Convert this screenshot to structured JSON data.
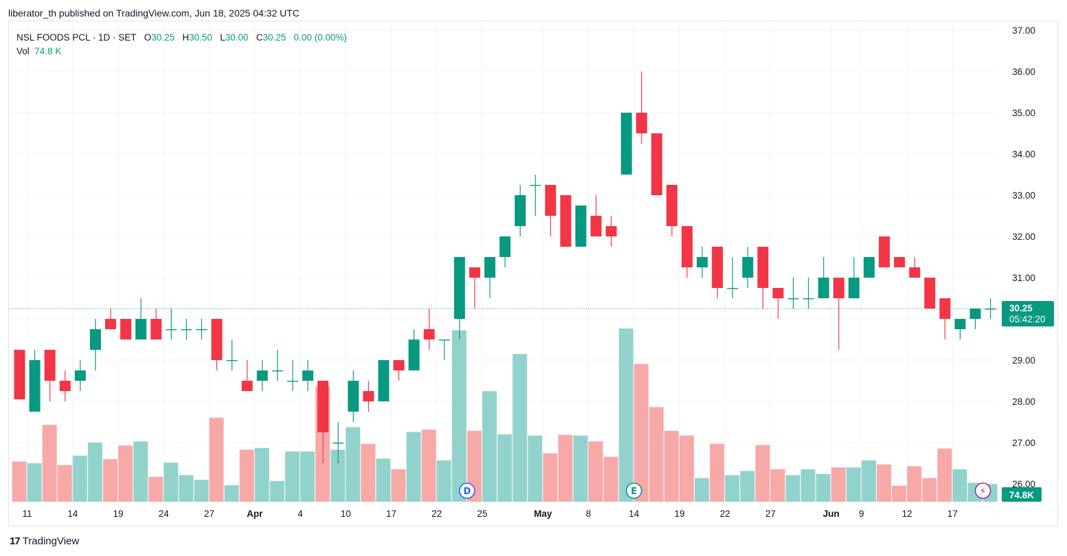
{
  "header": {
    "publisher": "liberator_th published on TradingView.com, Jun 18, 2025 04:32 UTC"
  },
  "legend": {
    "symbol": "NSL FOODS PCL · 1D · SET",
    "o_label": "O",
    "o": "30.25",
    "h_label": "H",
    "h": "30.50",
    "l_label": "L",
    "l": "30.00",
    "c_label": "C",
    "c": "30.25",
    "change": "0.00 (0.00%)",
    "vol_label": "Vol",
    "vol": "74.8 K"
  },
  "footer": {
    "brand": "TradingView",
    "logo": "17"
  },
  "colors": {
    "up": "#089981",
    "down": "#f23645",
    "vol_up": "#92d2cc",
    "vol_down": "#f7a9a7",
    "grid": "#f0f3fa",
    "text": "#131722"
  },
  "chart_data": {
    "type": "candlestick",
    "y_axis": {
      "ticks": [
        "26.00",
        "27.00",
        "28.00",
        "29.00",
        "30.00",
        "31.00",
        "32.00",
        "33.00",
        "34.00",
        "35.00",
        "36.00",
        "37.00"
      ],
      "range": [
        25.55,
        37.15
      ]
    },
    "x_axis": {
      "ticks": [
        "11",
        "14",
        "19",
        "24",
        "27",
        "Apr",
        "4",
        "10",
        "17",
        "22",
        "25",
        "May",
        "8",
        "14",
        "19",
        "22",
        "27",
        "Jun",
        "9",
        "12",
        "17"
      ]
    },
    "last_price_label": "30.25",
    "countdown_label": "05:42:20",
    "volume_label": "74.8K",
    "markers": [
      {
        "text": "D"
      },
      {
        "text": "E"
      },
      {
        "text": "⚡"
      }
    ],
    "candles": [
      {
        "o": 29.25,
        "h": 29.25,
        "l": 28.05,
        "c": 28.05,
        "v": 0.68
      },
      {
        "o": 27.75,
        "h": 29.25,
        "l": 27.75,
        "c": 29.0,
        "v": 0.65
      },
      {
        "o": 29.25,
        "h": 29.25,
        "l": 28.0,
        "c": 28.5,
        "v": 1.3
      },
      {
        "o": 28.5,
        "h": 28.75,
        "l": 28.0,
        "c": 28.25,
        "v": 0.62
      },
      {
        "o": 28.5,
        "h": 29.0,
        "l": 28.25,
        "c": 28.75,
        "v": 0.78
      },
      {
        "o": 29.25,
        "h": 30.0,
        "l": 28.75,
        "c": 29.75,
        "v": 1.0
      },
      {
        "o": 30.0,
        "h": 30.25,
        "l": 29.75,
        "c": 29.75,
        "v": 0.72
      },
      {
        "o": 30.0,
        "h": 30.0,
        "l": 29.5,
        "c": 29.5,
        "v": 0.95
      },
      {
        "o": 29.5,
        "h": 30.5,
        "l": 29.5,
        "c": 30.0,
        "v": 1.02
      },
      {
        "o": 30.0,
        "h": 30.25,
        "l": 29.5,
        "c": 29.5,
        "v": 0.42
      },
      {
        "o": 29.75,
        "h": 30.25,
        "l": 29.5,
        "c": 29.75,
        "v": 0.66
      },
      {
        "o": 29.75,
        "h": 30.0,
        "l": 29.5,
        "c": 29.75,
        "v": 0.45
      },
      {
        "o": 29.75,
        "h": 30.0,
        "l": 29.5,
        "c": 29.75,
        "v": 0.37
      },
      {
        "o": 30.0,
        "h": 30.0,
        "l": 28.75,
        "c": 29.0,
        "v": 1.42
      },
      {
        "o": 29.0,
        "h": 29.5,
        "l": 28.75,
        "c": 29.0,
        "v": 0.28
      },
      {
        "o": 28.5,
        "h": 29.0,
        "l": 28.25,
        "c": 28.25,
        "v": 0.88
      },
      {
        "o": 28.5,
        "h": 29.0,
        "l": 28.25,
        "c": 28.75,
        "v": 0.91
      },
      {
        "o": 28.75,
        "h": 29.25,
        "l": 28.5,
        "c": 28.75,
        "v": 0.35
      },
      {
        "o": 28.5,
        "h": 29.0,
        "l": 28.25,
        "c": 28.5,
        "v": 0.85
      },
      {
        "o": 28.5,
        "h": 29.0,
        "l": 28.25,
        "c": 28.75,
        "v": 0.85
      },
      {
        "o": 28.5,
        "h": 28.5,
        "l": 26.5,
        "c": 27.25,
        "v": 1.95
      },
      {
        "o": 27.0,
        "h": 27.5,
        "l": 26.5,
        "c": 27.0,
        "v": 0.88
      },
      {
        "o": 27.75,
        "h": 28.75,
        "l": 27.5,
        "c": 28.5,
        "v": 1.26
      },
      {
        "o": 28.25,
        "h": 28.5,
        "l": 27.75,
        "c": 28.0,
        "v": 0.98
      },
      {
        "o": 28.0,
        "h": 29.0,
        "l": 28.0,
        "c": 29.0,
        "v": 0.73
      },
      {
        "o": 29.0,
        "h": 29.0,
        "l": 28.5,
        "c": 28.75,
        "v": 0.55
      },
      {
        "o": 28.75,
        "h": 29.75,
        "l": 28.75,
        "c": 29.5,
        "v": 1.18
      },
      {
        "o": 29.75,
        "h": 30.25,
        "l": 29.25,
        "c": 29.5,
        "v": 1.22
      },
      {
        "o": 29.5,
        "h": 29.5,
        "l": 29.0,
        "c": 29.5,
        "v": 0.7
      },
      {
        "o": 30.0,
        "h": 31.5,
        "l": 29.5,
        "c": 31.5,
        "v": 2.9
      },
      {
        "o": 31.25,
        "h": 31.25,
        "l": 30.25,
        "c": 31.0,
        "v": 1.2
      },
      {
        "o": 31.0,
        "h": 31.5,
        "l": 30.5,
        "c": 31.5,
        "v": 1.87
      },
      {
        "o": 31.5,
        "h": 32.0,
        "l": 31.25,
        "c": 32.0,
        "v": 1.14
      },
      {
        "o": 32.25,
        "h": 33.25,
        "l": 32.0,
        "c": 33.0,
        "v": 2.5
      },
      {
        "o": 33.25,
        "h": 33.5,
        "l": 32.5,
        "c": 33.25,
        "v": 1.12
      },
      {
        "o": 33.25,
        "h": 33.25,
        "l": 32.0,
        "c": 32.5,
        "v": 0.82
      },
      {
        "o": 33.0,
        "h": 33.0,
        "l": 31.75,
        "c": 31.75,
        "v": 1.13
      },
      {
        "o": 31.75,
        "h": 32.75,
        "l": 31.75,
        "c": 32.75,
        "v": 1.12
      },
      {
        "o": 32.5,
        "h": 33.0,
        "l": 32.0,
        "c": 32.0,
        "v": 1.02
      },
      {
        "o": 32.25,
        "h": 32.5,
        "l": 31.75,
        "c": 32.0,
        "v": 0.76
      },
      {
        "o": 33.5,
        "h": 35.0,
        "l": 33.5,
        "c": 35.0,
        "v": 2.93
      },
      {
        "o": 35.0,
        "h": 36.0,
        "l": 34.25,
        "c": 34.5,
        "v": 2.33
      },
      {
        "o": 34.5,
        "h": 34.5,
        "l": 33.0,
        "c": 33.0,
        "v": 1.6
      },
      {
        "o": 33.25,
        "h": 33.25,
        "l": 32.0,
        "c": 32.25,
        "v": 1.2
      },
      {
        "o": 32.25,
        "h": 32.25,
        "l": 31.0,
        "c": 31.25,
        "v": 1.12
      },
      {
        "o": 31.25,
        "h": 31.75,
        "l": 31.0,
        "c": 31.5,
        "v": 0.4
      },
      {
        "o": 31.75,
        "h": 31.75,
        "l": 30.5,
        "c": 30.75,
        "v": 0.98
      },
      {
        "o": 30.75,
        "h": 31.5,
        "l": 30.5,
        "c": 30.75,
        "v": 0.45
      },
      {
        "o": 31.0,
        "h": 31.75,
        "l": 30.75,
        "c": 31.5,
        "v": 0.52
      },
      {
        "o": 31.75,
        "h": 31.75,
        "l": 30.25,
        "c": 30.75,
        "v": 0.96
      },
      {
        "o": 30.75,
        "h": 30.75,
        "l": 30.0,
        "c": 30.5,
        "v": 0.55
      },
      {
        "o": 30.5,
        "h": 31.0,
        "l": 30.25,
        "c": 30.5,
        "v": 0.45
      },
      {
        "o": 30.5,
        "h": 31.0,
        "l": 30.25,
        "c": 30.5,
        "v": 0.55
      },
      {
        "o": 30.5,
        "h": 31.5,
        "l": 30.5,
        "c": 31.0,
        "v": 0.47
      },
      {
        "o": 31.0,
        "h": 31.0,
        "l": 29.25,
        "c": 30.5,
        "v": 0.58
      },
      {
        "o": 30.5,
        "h": 31.5,
        "l": 30.5,
        "c": 31.0,
        "v": 0.58
      },
      {
        "o": 31.0,
        "h": 31.5,
        "l": 31.0,
        "c": 31.5,
        "v": 0.7
      },
      {
        "o": 32.0,
        "h": 32.0,
        "l": 31.25,
        "c": 31.25,
        "v": 0.63
      },
      {
        "o": 31.5,
        "h": 31.5,
        "l": 31.25,
        "c": 31.25,
        "v": 0.27
      },
      {
        "o": 31.25,
        "h": 31.5,
        "l": 31.0,
        "c": 31.0,
        "v": 0.6
      },
      {
        "o": 31.0,
        "h": 31.0,
        "l": 30.25,
        "c": 30.25,
        "v": 0.4
      },
      {
        "o": 30.5,
        "h": 30.5,
        "l": 29.5,
        "c": 30.0,
        "v": 0.9
      },
      {
        "o": 29.75,
        "h": 30.0,
        "l": 29.5,
        "c": 30.0,
        "v": 0.55
      },
      {
        "o": 30.0,
        "h": 30.25,
        "l": 29.75,
        "c": 30.25,
        "v": 0.32
      },
      {
        "o": 30.25,
        "h": 30.5,
        "l": 30.0,
        "c": 30.25,
        "v": 0.3
      }
    ],
    "x_tick_index": [
      0.5,
      3.5,
      6.5,
      9.5,
      12.5,
      15.5,
      18.5,
      21.5,
      24.5,
      27.5,
      30.5,
      34.5,
      37.5,
      40.5,
      43.5,
      46.5,
      49.5,
      53.5,
      55.5,
      58.5,
      61.5
    ],
    "marker_index": [
      29.5,
      40.5,
      63.5
    ]
  }
}
